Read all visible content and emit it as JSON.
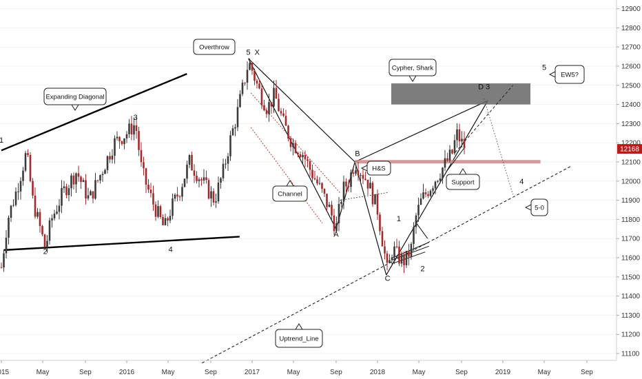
{
  "chart_data": {
    "type": "candlestick",
    "colors": {
      "up": "#3a3a3a",
      "down": "#a32a2a",
      "price_tag": "#b71c1c",
      "h_band": "#c98a8a",
      "zone": "#666666"
    },
    "y_ticks": [
      11100,
      11200,
      11300,
      11400,
      11500,
      11600,
      11700,
      11800,
      11900,
      12000,
      12100,
      12200,
      12300,
      12400,
      12500,
      12600,
      12700,
      12800,
      12900
    ],
    "ylim": [
      11050,
      12950
    ],
    "x_ticks": [
      {
        "label": "2015",
        "t": 2015.0
      },
      {
        "label": "May",
        "t": 2015.33
      },
      {
        "label": "Sep",
        "t": 2015.67
      },
      {
        "label": "2016",
        "t": 2016.0
      },
      {
        "label": "May",
        "t": 2016.33
      },
      {
        "label": "Sep",
        "t": 2016.67
      },
      {
        "label": "2017",
        "t": 2017.0
      },
      {
        "label": "May",
        "t": 2017.33
      },
      {
        "label": "Sep",
        "t": 2017.67
      },
      {
        "label": "2018",
        "t": 2018.0
      },
      {
        "label": "May",
        "t": 2018.33
      },
      {
        "label": "Sep",
        "t": 2018.67
      },
      {
        "label": "2019",
        "t": 2019.0
      },
      {
        "label": "May",
        "t": 2019.33
      },
      {
        "label": "Sep",
        "t": 2019.67
      }
    ],
    "last_price": "12168",
    "price_path": [
      [
        2015.0,
        11550
      ],
      [
        2015.05,
        11800
      ],
      [
        2015.12,
        11950
      ],
      [
        2015.2,
        12150
      ],
      [
        2015.25,
        11900
      ],
      [
        2015.35,
        11650
      ],
      [
        2015.4,
        11800
      ],
      [
        2015.5,
        11950
      ],
      [
        2015.6,
        12050
      ],
      [
        2015.7,
        11900
      ],
      [
        2015.8,
        12050
      ],
      [
        2015.9,
        12200
      ],
      [
        2016.0,
        12250
      ],
      [
        2016.07,
        12300
      ],
      [
        2016.12,
        12050
      ],
      [
        2016.2,
        11900
      ],
      [
        2016.3,
        11750
      ],
      [
        2016.35,
        11850
      ],
      [
        2016.42,
        11950
      ],
      [
        2016.5,
        12100
      ],
      [
        2016.6,
        12000
      ],
      [
        2016.7,
        11900
      ],
      [
        2016.77,
        12050
      ],
      [
        2016.82,
        12200
      ],
      [
        2016.88,
        12350
      ],
      [
        2016.93,
        12500
      ],
      [
        2016.97,
        12620
      ],
      [
        2017.0,
        12580
      ],
      [
        2017.05,
        12480
      ],
      [
        2017.12,
        12380
      ],
      [
        2017.18,
        12450
      ],
      [
        2017.25,
        12300
      ],
      [
        2017.32,
        12200
      ],
      [
        2017.4,
        12150
      ],
      [
        2017.47,
        12050
      ],
      [
        2017.55,
        11950
      ],
      [
        2017.62,
        11850
      ],
      [
        2017.67,
        11750
      ],
      [
        2017.72,
        11950
      ],
      [
        2017.77,
        12000
      ],
      [
        2017.82,
        12100
      ],
      [
        2017.87,
        12050
      ],
      [
        2017.92,
        12000
      ],
      [
        2018.0,
        11850
      ],
      [
        2018.05,
        11650
      ],
      [
        2018.08,
        11520
      ],
      [
        2018.12,
        11650
      ],
      [
        2018.17,
        11600
      ],
      [
        2018.22,
        11580
      ],
      [
        2018.27,
        11650
      ],
      [
        2018.3,
        11800
      ],
      [
        2018.35,
        11900
      ],
      [
        2018.4,
        11950
      ],
      [
        2018.45,
        12000
      ],
      [
        2018.5,
        12050
      ],
      [
        2018.55,
        12100
      ],
      [
        2018.6,
        12150
      ],
      [
        2018.63,
        12250
      ],
      [
        2018.67,
        12200
      ],
      [
        2018.71,
        12168
      ]
    ],
    "annotations": [
      {
        "id": "expanding-diagonal",
        "label": "Expanding Diagonal",
        "type": "callout"
      },
      {
        "id": "overthrow",
        "label": "Overthrow",
        "type": "callout"
      },
      {
        "id": "channel",
        "label": "Channel",
        "type": "callout"
      },
      {
        "id": "hs",
        "label": "H&S",
        "type": "callout"
      },
      {
        "id": "cypher-shark",
        "label": "Cypher, Shark",
        "type": "callout"
      },
      {
        "id": "support",
        "label": "Support",
        "type": "callout"
      },
      {
        "id": "ew5",
        "label": "EW5?",
        "type": "callout"
      },
      {
        "id": "five-zero",
        "label": "5-0",
        "type": "callout"
      },
      {
        "id": "uptrend-line",
        "label": "Uptrend_Line",
        "type": "callout"
      }
    ],
    "wave_labels": [
      {
        "id": "w1",
        "label": "1",
        "t": 2015.0,
        "y": 12200
      },
      {
        "id": "w2",
        "label": "2",
        "t": 2015.35,
        "y": 11620
      },
      {
        "id": "w3",
        "label": "3",
        "t": 2016.07,
        "y": 12320
      },
      {
        "id": "w4",
        "label": "4",
        "t": 2016.35,
        "y": 11630
      },
      {
        "id": "w5",
        "label": "5",
        "t": 2016.97,
        "y": 12660
      },
      {
        "id": "x",
        "label": "X",
        "t": 2017.04,
        "y": 12660
      },
      {
        "id": "a",
        "label": "A",
        "t": 2017.67,
        "y": 11710
      },
      {
        "id": "b",
        "label": "B",
        "t": 2017.84,
        "y": 12130
      },
      {
        "id": "c",
        "label": "C",
        "t": 2018.08,
        "y": 11480
      },
      {
        "id": "d3",
        "label": "D 3",
        "t": 2018.85,
        "y": 12480
      },
      {
        "id": "s1",
        "label": "1",
        "t": 2018.17,
        "y": 11790
      },
      {
        "id": "s2",
        "label": "2",
        "t": 2018.36,
        "y": 11530
      },
      {
        "id": "w4b",
        "label": "4",
        "t": 2019.15,
        "y": 11985
      },
      {
        "id": "w5b",
        "label": "5",
        "t": 2019.33,
        "y": 12580
      }
    ]
  }
}
